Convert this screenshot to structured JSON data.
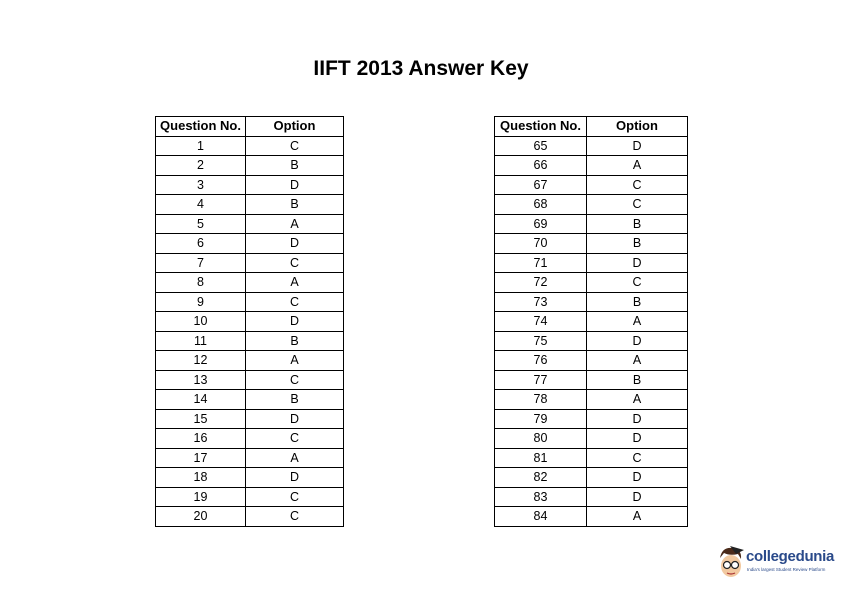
{
  "title": "IIFT 2013 Answer Key",
  "headers": {
    "question": "Question No.",
    "option": "Option"
  },
  "tables": [
    {
      "rows": [
        {
          "q": "1",
          "a": "C"
        },
        {
          "q": "2",
          "a": "B"
        },
        {
          "q": "3",
          "a": "D"
        },
        {
          "q": "4",
          "a": "B"
        },
        {
          "q": "5",
          "a": "A"
        },
        {
          "q": "6",
          "a": "D"
        },
        {
          "q": "7",
          "a": "C"
        },
        {
          "q": "8",
          "a": "A"
        },
        {
          "q": "9",
          "a": "C"
        },
        {
          "q": "10",
          "a": "D"
        },
        {
          "q": "11",
          "a": "B"
        },
        {
          "q": "12",
          "a": "A"
        },
        {
          "q": "13",
          "a": "C"
        },
        {
          "q": "14",
          "a": "B"
        },
        {
          "q": "15",
          "a": "D"
        },
        {
          "q": "16",
          "a": "C"
        },
        {
          "q": "17",
          "a": "A"
        },
        {
          "q": "18",
          "a": "D"
        },
        {
          "q": "19",
          "a": "C"
        },
        {
          "q": "20",
          "a": "C"
        }
      ]
    },
    {
      "rows": [
        {
          "q": "65",
          "a": "D"
        },
        {
          "q": "66",
          "a": "A"
        },
        {
          "q": "67",
          "a": "C"
        },
        {
          "q": "68",
          "a": "C"
        },
        {
          "q": "69",
          "a": "B"
        },
        {
          "q": "70",
          "a": "B"
        },
        {
          "q": "71",
          "a": "D"
        },
        {
          "q": "72",
          "a": "C"
        },
        {
          "q": "73",
          "a": "B"
        },
        {
          "q": "74",
          "a": "A"
        },
        {
          "q": "75",
          "a": "D"
        },
        {
          "q": "76",
          "a": "A"
        },
        {
          "q": "77",
          "a": "B"
        },
        {
          "q": "78",
          "a": "A"
        },
        {
          "q": "79",
          "a": "D"
        },
        {
          "q": "80",
          "a": "D"
        },
        {
          "q": "81",
          "a": "C"
        },
        {
          "q": "82",
          "a": "D"
        },
        {
          "q": "83",
          "a": "D"
        },
        {
          "q": "84",
          "a": "A"
        }
      ]
    }
  ],
  "logo": {
    "name": "collegedunia",
    "tagline": "India's largest Student Review Platform",
    "color": "#2a4a8a"
  }
}
